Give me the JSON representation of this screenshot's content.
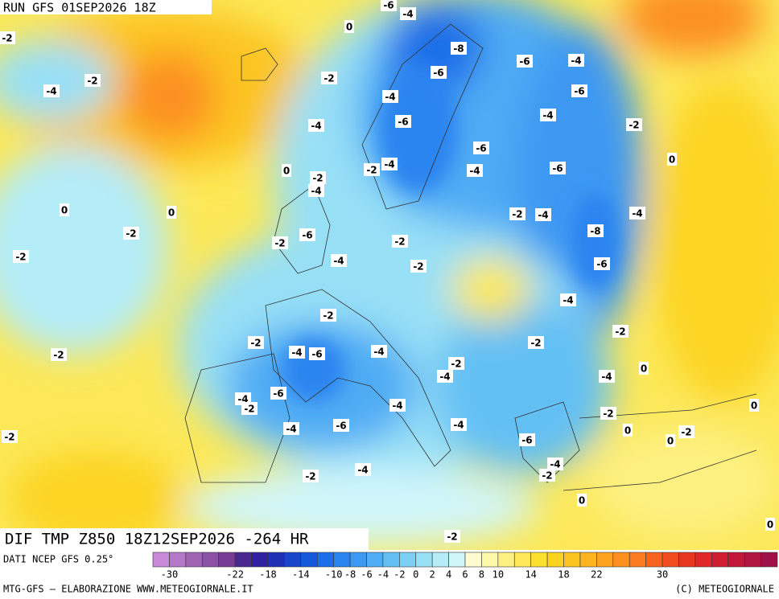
{
  "header": {
    "run": "RUN GFS 01SEP2026 18Z"
  },
  "map": {
    "title": "DIF TMP Z850 18Z12SEP2026 -264 HR",
    "contour_labels": [
      "-6",
      "-4",
      "0",
      "-2",
      "-8",
      "-6",
      "-4",
      "-4",
      "-2",
      "-2",
      "-6",
      "-6",
      "-4",
      "-4",
      "-6",
      "-2",
      "-4",
      "-6",
      "0",
      "-2",
      "-4",
      "-4",
      "-6",
      "0",
      "-2",
      "-4",
      "0",
      "0",
      "-2",
      "-4",
      "-4",
      "-2",
      "-6",
      "-2",
      "-8",
      "-2",
      "-2",
      "-4",
      "-2",
      "-6",
      "-4",
      "-2",
      "-2",
      "-2",
      "-4",
      "-6",
      "-4",
      "-2",
      "-2",
      "-2",
      "0",
      "-4",
      "-4",
      "-6",
      "-4",
      "-2",
      "-4",
      "0",
      "-2",
      "-4",
      "-6",
      "-4",
      "-2",
      "0",
      "-2",
      "0",
      "-6",
      "-4",
      "-4",
      "-2",
      "-2",
      "0",
      "-2",
      "0"
    ]
  },
  "legend": {
    "source": "DATI NCEP GFS 0.25°",
    "colors": [
      "#c88ad8",
      "#b478c8",
      "#a064b4",
      "#8c50a4",
      "#783c94",
      "#4a2890",
      "#3020a0",
      "#2030b4",
      "#1846c8",
      "#1458dc",
      "#1c6ee8",
      "#2a84f0",
      "#3c98f2",
      "#50acf4",
      "#64c0f4",
      "#7cd0f4",
      "#98e0f6",
      "#b4ecf8",
      "#d0f6fa",
      "#fcfcd0",
      "#fcf8a8",
      "#fcf080",
      "#fce858",
      "#fce030",
      "#fcd420",
      "#fcc420",
      "#fcb420",
      "#fca420",
      "#fc9020",
      "#fc7c20",
      "#f86420",
      "#f04c20",
      "#e83820",
      "#e02828",
      "#d01c30",
      "#c01838",
      "#b01440",
      "#a01048"
    ],
    "tick_labels": [
      "-30",
      "-22",
      "-18",
      "-14",
      "-10",
      "-8",
      "-6",
      "-4",
      "-2",
      "0",
      "2",
      "4",
      "6",
      "8",
      "10",
      "14",
      "18",
      "22",
      "30"
    ]
  },
  "footer": {
    "left": "MTG-GFS — ELABORAZIONE WWW.METEOGIORNALE.IT",
    "right": "(C) METEOGIORNALE"
  }
}
